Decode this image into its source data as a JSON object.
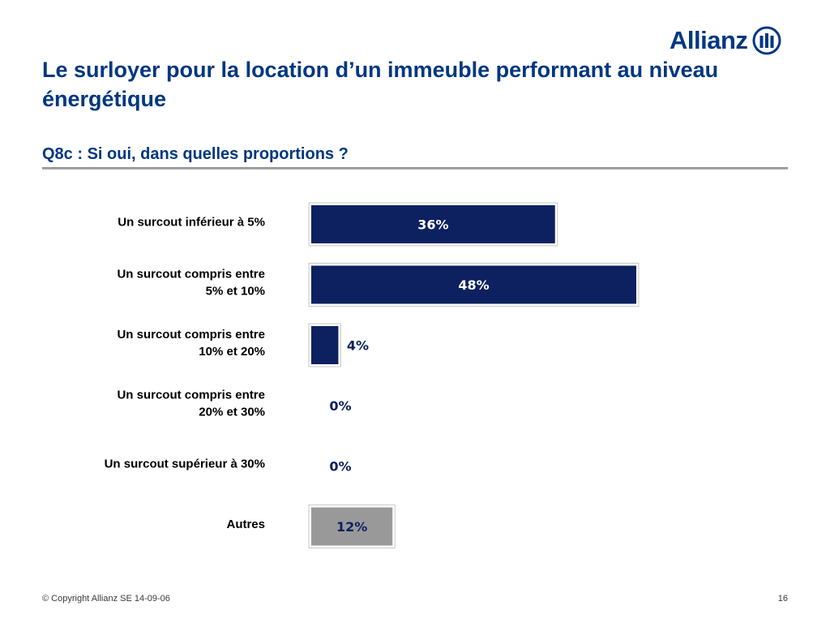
{
  "brand": {
    "name": "Allianz",
    "color": "#003781"
  },
  "title": "Le surloyer pour la location d’un immeuble performant au niveau énergétique",
  "subtitle": "Q8c : Si oui, dans quelles proportions ?",
  "footer": {
    "copyright": "© Copyright Allianz SE 14-09-06",
    "page_number": "16"
  },
  "chart_data": {
    "type": "bar",
    "orientation": "horizontal",
    "title": "",
    "xlabel": "",
    "ylabel": "",
    "xlim": [
      0,
      48
    ],
    "grid": false,
    "categories": [
      [
        "Un surcout inférieur à 5%"
      ],
      [
        "Un surcout compris entre",
        "5% et 10%"
      ],
      [
        "Un surcout compris entre",
        "10% et 20%"
      ],
      [
        "Un surcout compris entre",
        "20% et 30%"
      ],
      [
        "Un surcout supérieur à 30%"
      ],
      [
        "Autres"
      ]
    ],
    "values": [
      36,
      48,
      4,
      0,
      0,
      12
    ],
    "value_labels": [
      "36%",
      "48%",
      "4%",
      "0%",
      "0%",
      "12%"
    ],
    "bar_colors": [
      "#0d2160",
      "#0d2160",
      "#0d2160",
      "#0d2160",
      "#0d2160",
      "#999999"
    ]
  }
}
